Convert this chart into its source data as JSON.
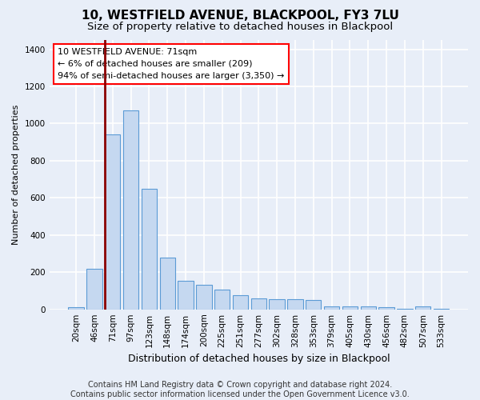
{
  "title": "10, WESTFIELD AVENUE, BLACKPOOL, FY3 7LU",
  "subtitle": "Size of property relative to detached houses in Blackpool",
  "xlabel": "Distribution of detached houses by size in Blackpool",
  "ylabel": "Number of detached properties",
  "categories": [
    "20sqm",
    "46sqm",
    "71sqm",
    "97sqm",
    "123sqm",
    "148sqm",
    "174sqm",
    "200sqm",
    "225sqm",
    "251sqm",
    "277sqm",
    "302sqm",
    "328sqm",
    "353sqm",
    "379sqm",
    "405sqm",
    "430sqm",
    "456sqm",
    "482sqm",
    "507sqm",
    "533sqm"
  ],
  "values": [
    10,
    220,
    940,
    1070,
    650,
    280,
    155,
    130,
    105,
    75,
    60,
    55,
    55,
    50,
    15,
    15,
    15,
    10,
    5,
    15,
    5
  ],
  "bar_color": "#c5d8f0",
  "bar_edge_color": "#5b9bd5",
  "highlight_index": 2,
  "highlight_line_color": "#8b0000",
  "annotation_box_text": "10 WESTFIELD AVENUE: 71sqm\n← 6% of detached houses are smaller (209)\n94% of semi-detached houses are larger (3,350) →",
  "ylim": [
    0,
    1450
  ],
  "yticks": [
    0,
    200,
    400,
    600,
    800,
    1000,
    1200,
    1400
  ],
  "bg_color": "#e8eef8",
  "plot_bg_color": "#e8eef8",
  "grid_color": "#ffffff",
  "footer": "Contains HM Land Registry data © Crown copyright and database right 2024.\nContains public sector information licensed under the Open Government Licence v3.0.",
  "title_fontsize": 11,
  "subtitle_fontsize": 9.5,
  "xlabel_fontsize": 9,
  "ylabel_fontsize": 8,
  "tick_fontsize": 7.5,
  "annotation_fontsize": 8,
  "footer_fontsize": 7
}
